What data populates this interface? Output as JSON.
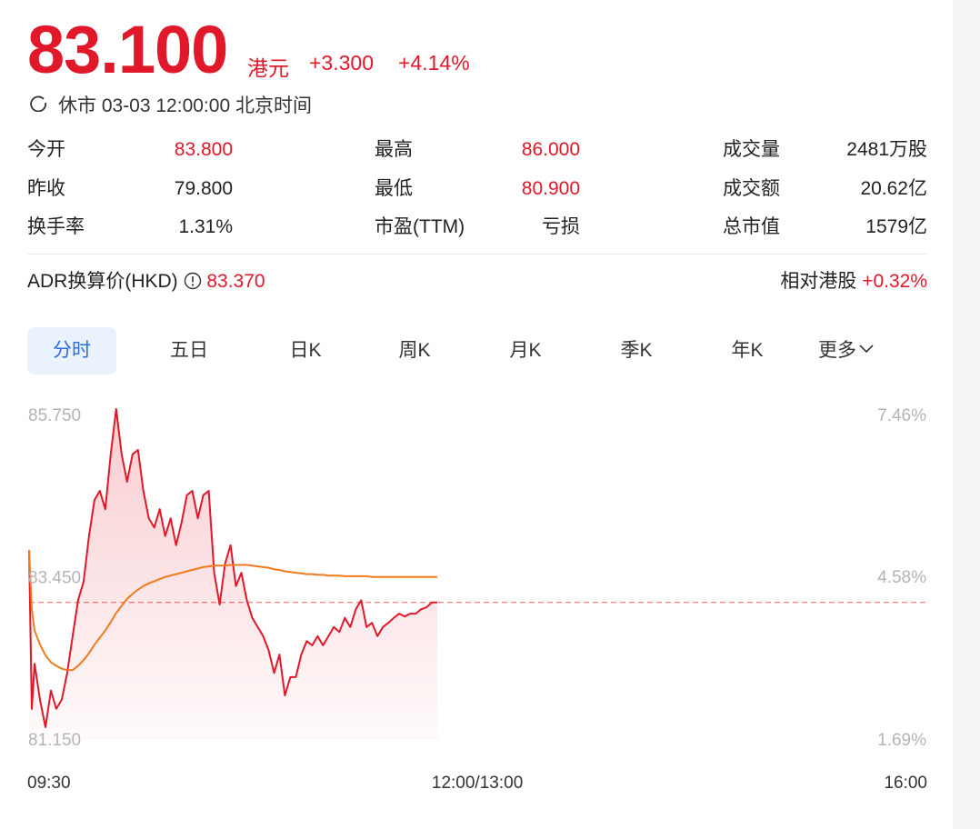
{
  "quote": {
    "price": "83.100",
    "currency": "港元",
    "change": "+3.300",
    "change_pct": "+4.14%",
    "status": "休市 03-03 12:00:00 北京时间"
  },
  "stats": [
    [
      {
        "label": "今开",
        "value": "83.800"
      },
      {
        "label": "最高",
        "value": "86.000"
      },
      {
        "label": "成交量",
        "value": "2481万股"
      }
    ],
    [
      {
        "label": "昨收",
        "value": "79.800"
      },
      {
        "label": "最低",
        "value": "80.900"
      },
      {
        "label": "成交额",
        "value": "20.62亿"
      }
    ],
    [
      {
        "label": "换手率",
        "value": "1.31%"
      },
      {
        "label": "市盈(TTM)",
        "value": "亏损"
      },
      {
        "label": "总市值",
        "value": "1579亿"
      }
    ]
  ],
  "adr": {
    "label": "ADR换算价(HKD)",
    "value": "83.370",
    "relative_label": "相对港股",
    "relative_value": "+0.32%"
  },
  "tabs": [
    "分时",
    "五日",
    "日K",
    "周K",
    "月K",
    "季K",
    "年K",
    "更多"
  ],
  "chart_data": {
    "type": "line",
    "x": [
      0,
      1,
      2,
      4,
      6,
      8,
      10,
      12,
      14,
      16,
      18,
      20,
      22,
      24,
      26,
      28,
      30,
      32,
      34,
      36,
      38,
      40,
      42,
      44,
      46,
      48,
      50,
      52,
      54,
      56,
      58,
      60,
      62,
      64,
      66,
      68,
      70,
      72,
      74,
      76,
      78,
      80,
      82,
      84,
      86,
      88,
      90,
      92,
      94,
      96,
      98,
      100,
      102,
      104,
      106,
      108,
      110,
      112,
      114,
      116,
      118,
      120,
      122,
      124,
      126,
      128,
      130,
      132,
      134,
      136,
      138,
      140,
      142,
      144,
      146,
      148,
      150
    ],
    "xlim": [
      0,
      330
    ],
    "xticks": [
      {
        "value": 0,
        "label": "09:30"
      },
      {
        "value": 150,
        "label": "12:00/13:00"
      },
      {
        "value": 330,
        "label": "16:00"
      }
    ],
    "series": [
      {
        "color": "#e0182a",
        "fill": true,
        "values": [
          83.84,
          81.59,
          82.23,
          81.72,
          81.33,
          81.85,
          81.59,
          81.72,
          82.1,
          82.62,
          83.13,
          83.39,
          84.04,
          84.55,
          84.68,
          84.42,
          85.2,
          85.84,
          85.2,
          84.81,
          85.2,
          85.26,
          84.68,
          84.29,
          84.16,
          84.42,
          84.04,
          84.29,
          83.91,
          84.23,
          84.62,
          84.68,
          84.29,
          84.62,
          84.68,
          83.52,
          83.07,
          83.65,
          83.91,
          83.33,
          83.52,
          83.13,
          82.88,
          82.75,
          82.62,
          82.42,
          82.1,
          82.36,
          81.78,
          82.04,
          82.04,
          82.36,
          82.55,
          82.49,
          82.62,
          82.49,
          82.62,
          82.75,
          82.68,
          82.88,
          82.75,
          83.0,
          83.13,
          82.75,
          82.81,
          82.62,
          82.75,
          82.81,
          82.88,
          82.94,
          82.9,
          82.94,
          82.94,
          83.0,
          83.03,
          83.1,
          83.1
        ]
      },
      {
        "color": "#f07a1c",
        "fill": false,
        "values": [
          83.84,
          83.0,
          82.7,
          82.5,
          82.35,
          82.25,
          82.2,
          82.16,
          82.14,
          82.14,
          82.2,
          82.28,
          82.38,
          82.5,
          82.6,
          82.7,
          82.82,
          82.95,
          83.05,
          83.15,
          83.22,
          83.28,
          83.33,
          83.37,
          83.4,
          83.43,
          83.46,
          83.48,
          83.5,
          83.52,
          83.54,
          83.56,
          83.58,
          83.6,
          83.61,
          83.62,
          83.62,
          83.62,
          83.63,
          83.63,
          83.63,
          83.63,
          83.62,
          83.61,
          83.6,
          83.59,
          83.57,
          83.56,
          83.54,
          83.53,
          83.52,
          83.51,
          83.5,
          83.5,
          83.49,
          83.49,
          83.48,
          83.48,
          83.48,
          83.47,
          83.47,
          83.47,
          83.47,
          83.47,
          83.46,
          83.46,
          83.46,
          83.46,
          83.46,
          83.46,
          83.46,
          83.46,
          83.46,
          83.46,
          83.46,
          83.46,
          83.46
        ]
      }
    ],
    "reference_line": 83.1,
    "ylim": [
      81.15,
      85.75
    ],
    "yticks": [
      {
        "value": 85.75,
        "label": "85.750"
      },
      {
        "value": 83.45,
        "label": "83.450"
      },
      {
        "value": 81.15,
        "label": "81.150"
      }
    ],
    "y2lim": [
      1.69,
      7.46
    ],
    "y2ticks": [
      {
        "value": 7.46,
        "label": "7.46%"
      },
      {
        "value": 4.58,
        "label": "4.58%"
      },
      {
        "value": 1.69,
        "label": "1.69%"
      }
    ],
    "grid": false
  }
}
